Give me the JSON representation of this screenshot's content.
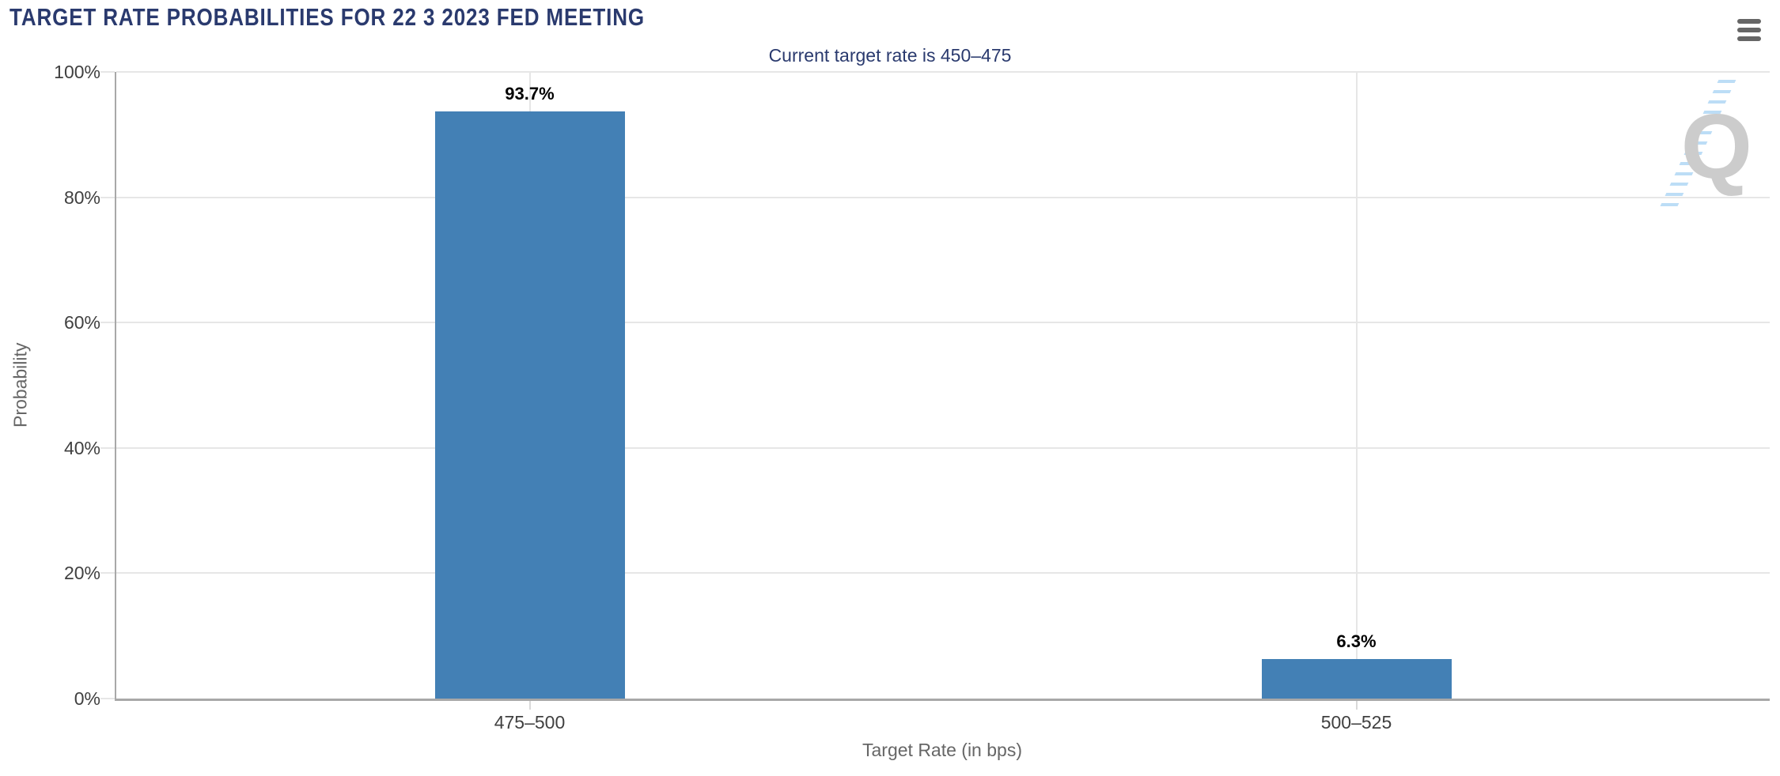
{
  "watermark": {
    "letter": "Q"
  },
  "colors": {
    "bar_fill": "#4380B5",
    "heading": "#2A3A6E",
    "axis_label": "#404040",
    "axis_title": "#666666",
    "gridline": "#E6E6E6",
    "axis_line": "#A8A8A8",
    "data_label": "#000000",
    "menu_icon": "#666666",
    "watermark_gray": "#CCCCCC",
    "watermark_blue": "#B5D9F5",
    "tick": "#D9D9D9"
  },
  "chart_data": {
    "type": "bar",
    "title": "TARGET RATE PROBABILITIES FOR 22 3 2023 FED MEETING",
    "subtitle": "Current target rate is 450–475",
    "categories": [
      "475–500",
      "500–525"
    ],
    "values": [
      93.7,
      6.3
    ],
    "value_labels": [
      "93.7%",
      "6.3%"
    ],
    "xlabel": "Target Rate (in bps)",
    "ylabel": "Probability",
    "ylim": [
      0,
      100
    ],
    "yticks": [
      0,
      20,
      40,
      60,
      80,
      100
    ],
    "ytick_labels": [
      "0%",
      "20%",
      "40%",
      "60%",
      "80%",
      "100%"
    ],
    "grid": true,
    "legend": false
  }
}
